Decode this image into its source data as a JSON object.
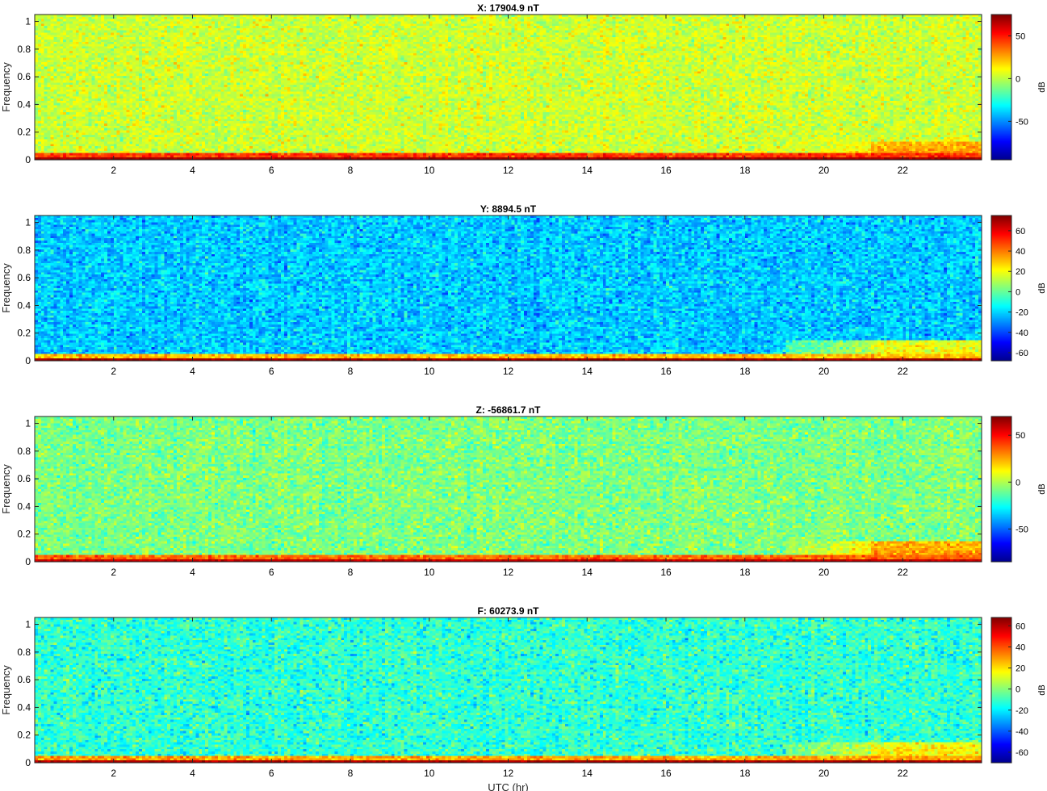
{
  "figure": {
    "xlabel": "UTC (hr)",
    "colormap": "jet",
    "colormap_stops": [
      "#00008f",
      "#0000ff",
      "#00ffff",
      "#ffff00",
      "#ff0000",
      "#800000"
    ]
  },
  "chart_data": [
    {
      "type": "heatmap",
      "title": "X: 17904.9 nT",
      "xlabel": "",
      "ylabel": "Frequency",
      "colorbar_label": "dB",
      "xlim": [
        0,
        24
      ],
      "ylim": [
        0,
        1.05
      ],
      "xticks": [
        2,
        4,
        6,
        8,
        10,
        12,
        14,
        16,
        18,
        20,
        22
      ],
      "xtick_labels": [
        "2",
        "4",
        "6",
        "8",
        "10",
        "12",
        "14",
        "16",
        "18",
        "20",
        "22"
      ],
      "yticks": [
        0,
        0.2,
        0.4,
        0.6,
        0.8,
        1
      ],
      "ytick_labels": [
        "0",
        "0.2",
        "0.4",
        "0.6",
        "0.8",
        "1"
      ],
      "clim": [
        -95,
        75
      ],
      "cticks": [
        -50,
        0,
        50
      ],
      "ctick_labels": [
        "-50",
        "0",
        "50"
      ],
      "background_level_db": 3,
      "low_freq_band_db": 45,
      "dc_level_db": 70,
      "late_day_rise": {
        "start_hr": 19,
        "step_hr": 21.2,
        "band_top_freq": 0.13,
        "level_db": 30
      }
    },
    {
      "type": "heatmap",
      "title": "Y: 8894.5 nT",
      "xlabel": "",
      "ylabel": "Frequency",
      "colorbar_label": "dB",
      "xlim": [
        0,
        24
      ],
      "ylim": [
        0,
        1.05
      ],
      "xticks": [
        2,
        4,
        6,
        8,
        10,
        12,
        14,
        16,
        18,
        20,
        22
      ],
      "xtick_labels": [
        "2",
        "4",
        "6",
        "8",
        "10",
        "12",
        "14",
        "16",
        "18",
        "20",
        "22"
      ],
      "yticks": [
        0,
        0.2,
        0.4,
        0.6,
        0.8,
        1
      ],
      "ytick_labels": [
        "0",
        "0.2",
        "0.4",
        "0.6",
        "0.8",
        "1"
      ],
      "clim": [
        -68,
        75
      ],
      "cticks": [
        -60,
        -40,
        -20,
        0,
        20,
        40,
        60
      ],
      "ctick_labels": [
        "-60",
        "-40",
        "-20",
        "0",
        "20",
        "40",
        "60"
      ],
      "background_level_db": -22,
      "low_freq_band_db": 30,
      "dc_level_db": 70,
      "late_day_rise": {
        "start_hr": 19,
        "step_hr": 21.2,
        "band_top_freq": 0.14,
        "level_db": 25
      }
    },
    {
      "type": "heatmap",
      "title": "Z: -56861.7 nT",
      "xlabel": "",
      "ylabel": "Frequency",
      "colorbar_label": "dB",
      "xlim": [
        0,
        24
      ],
      "ylim": [
        0,
        1.05
      ],
      "xticks": [
        2,
        4,
        6,
        8,
        10,
        12,
        14,
        16,
        18,
        20,
        22
      ],
      "xtick_labels": [
        "2",
        "4",
        "6",
        "8",
        "10",
        "12",
        "14",
        "16",
        "18",
        "20",
        "22"
      ],
      "yticks": [
        0,
        0.2,
        0.4,
        0.6,
        0.8,
        1
      ],
      "ytick_labels": [
        "0",
        "0.2",
        "0.4",
        "0.6",
        "0.8",
        "1"
      ],
      "clim": [
        -85,
        70
      ],
      "cticks": [
        -50,
        0,
        50
      ],
      "ctick_labels": [
        "-50",
        "0",
        "50"
      ],
      "background_level_db": -8,
      "low_freq_band_db": 35,
      "dc_level_db": 60,
      "late_day_rise": {
        "start_hr": 19,
        "step_hr": 21.2,
        "band_top_freq": 0.15,
        "level_db": 30
      }
    },
    {
      "type": "heatmap",
      "title": "F: 60273.9 nT",
      "xlabel": "UTC (hr)",
      "ylabel": "Frequency",
      "colorbar_label": "dB",
      "xlim": [
        0,
        24
      ],
      "ylim": [
        0,
        1.05
      ],
      "xticks": [
        2,
        4,
        6,
        8,
        10,
        12,
        14,
        16,
        18,
        20,
        22
      ],
      "xtick_labels": [
        "2",
        "4",
        "6",
        "8",
        "10",
        "12",
        "14",
        "16",
        "18",
        "20",
        "22"
      ],
      "yticks": [
        0,
        0.2,
        0.4,
        0.6,
        0.8,
        1
      ],
      "ytick_labels": [
        "0",
        "0.2",
        "0.4",
        "0.6",
        "0.8",
        "1"
      ],
      "clim": [
        -70,
        68
      ],
      "cticks": [
        -60,
        -40,
        -20,
        0,
        20,
        40,
        60
      ],
      "ctick_labels": [
        "-60",
        "-40",
        "-20",
        "0",
        "20",
        "40",
        "60"
      ],
      "background_level_db": -12,
      "low_freq_band_db": 28,
      "dc_level_db": 62,
      "late_day_rise": {
        "start_hr": 19,
        "step_hr": 21.2,
        "band_top_freq": 0.15,
        "level_db": 22
      }
    }
  ]
}
